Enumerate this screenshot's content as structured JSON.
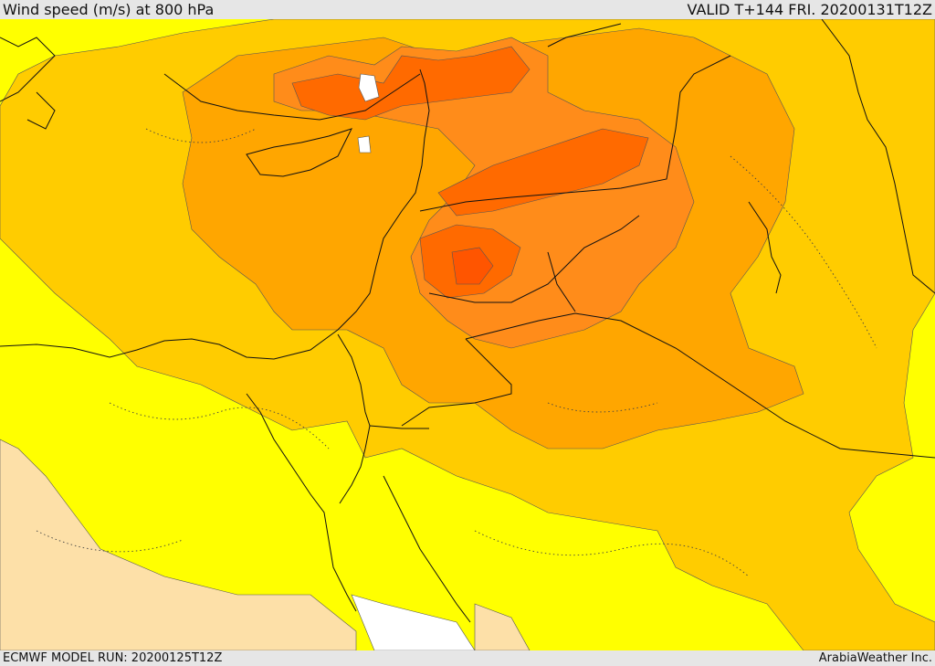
{
  "header": {
    "title": "Wind speed (m/s) at 800 hPa",
    "valid": "VALID T+144 FRI. 20200131T12Z"
  },
  "footer": {
    "model_run": "ECMWF MODEL RUN: 20200125T12Z",
    "credit": "ArabiaWeather Inc."
  },
  "map": {
    "variable": "wind speed",
    "level": "800 hPa",
    "units": "m/s",
    "colors": {
      "weak": "#fde0a8",
      "low": "#ffff00",
      "moderate": "#ffcc00",
      "strong": "#ffa600",
      "stronger": "#ff8c1a",
      "strongest": "#ff6a00",
      "core": "#ff5500",
      "no_data": "#ffffff"
    }
  }
}
